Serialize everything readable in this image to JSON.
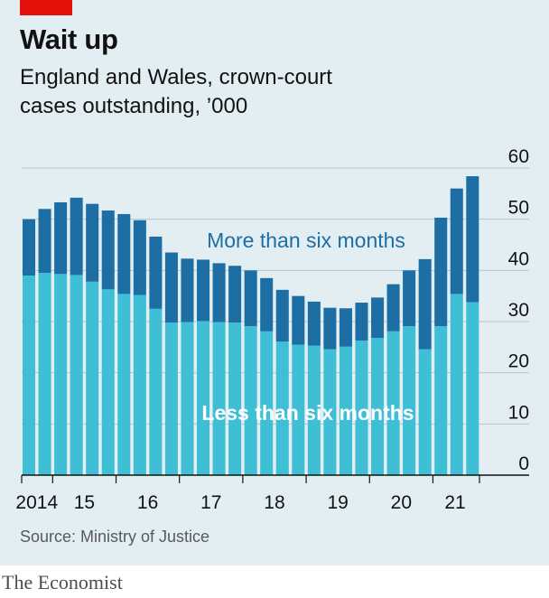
{
  "title": "Wait up",
  "subtitle_line1": "England and Wales, crown-court",
  "subtitle_line2": "cases outstanding, ’000",
  "source": "Source: Ministry of Justice",
  "brand": "The Economist",
  "colors": {
    "brand_red": "#e3120b",
    "less_than_six_months": "#3ebfd6",
    "more_than_six_months": "#1c6ea4",
    "background": "#e3eef2"
  },
  "chart_data": {
    "type": "bar",
    "stacked": true,
    "title": "Wait up",
    "subtitle": "England and Wales, crown-court cases outstanding, ’000",
    "ylim": [
      0,
      60
    ],
    "yticks": [
      "0",
      "10",
      "20",
      "30",
      "40",
      "50",
      "60"
    ],
    "ytick_values": [
      0,
      10,
      20,
      30,
      40,
      50,
      60
    ],
    "grid": true,
    "x_tick_labels": [
      "2014",
      "15",
      "16",
      "17",
      "18",
      "19",
      "20",
      "21"
    ],
    "x_tick_label_bar_index": [
      0.5,
      3.5,
      7.5,
      11.5,
      15.5,
      19.5,
      23.5,
      26.9
    ],
    "x_year_boundary_bar_index": [
      2,
      6,
      10,
      14,
      18,
      22,
      26
    ],
    "periods": [
      "2014 Q1",
      "2014 Q2",
      "2014 Q3",
      "2014 Q4",
      "2015 Q1",
      "2015 Q2",
      "2015 Q3",
      "2015 Q4",
      "2016 Q1",
      "2016 Q2",
      "2016 Q3",
      "2016 Q4",
      "2017 Q1",
      "2017 Q2",
      "2017 Q3",
      "2017 Q4",
      "2018 Q1",
      "2018 Q2",
      "2018 Q3",
      "2018 Q4",
      "2019 Q1",
      "2019 Q2",
      "2019 Q3",
      "2019 Q4",
      "2020 Q1",
      "2020 Q2",
      "2020 Q3",
      "2020 Q4",
      "2021 Q1"
    ],
    "series": [
      {
        "name": "Less than six months",
        "values": [
          39,
          39.5,
          39.3,
          39.1,
          37.8,
          36.3,
          35.4,
          35.2,
          32.5,
          29.8,
          29.9,
          30.1,
          29.9,
          29.8,
          29.1,
          28.1,
          26.1,
          25.5,
          25.3,
          24.6,
          25.1,
          26.3,
          26.8,
          28.1,
          29.1,
          24.6,
          29.1,
          35.4,
          33.8
        ]
      },
      {
        "name": "More than six months",
        "values": [
          11,
          12.5,
          14,
          15.1,
          15.2,
          15.4,
          15.6,
          14.6,
          14.1,
          13.7,
          12.4,
          12,
          11.5,
          11.1,
          10.9,
          10.4,
          10.1,
          9.5,
          8.6,
          8.1,
          7.5,
          7.4,
          7.9,
          9.2,
          10.9,
          17.6,
          21.2,
          20.6,
          24.6
        ]
      }
    ],
    "series_labels": [
      "More than six months",
      "Less than six months"
    ]
  }
}
